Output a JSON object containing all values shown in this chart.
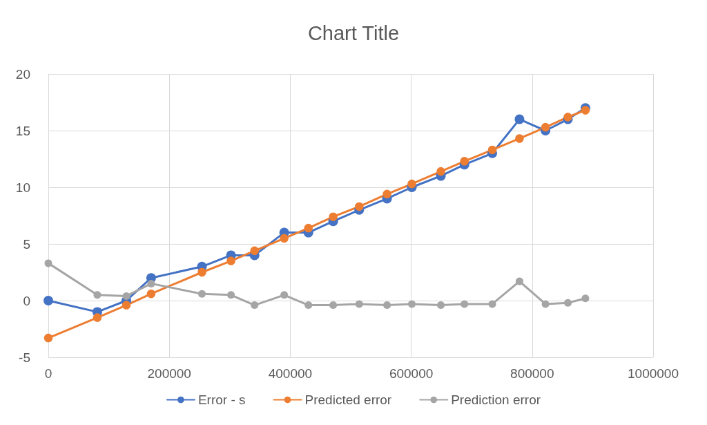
{
  "chart_data": {
    "type": "line",
    "title": "Chart Title",
    "x": [
      0,
      81000,
      129000,
      170000,
      254000,
      302000,
      341000,
      390000,
      430000,
      471000,
      514000,
      560000,
      601000,
      649000,
      688000,
      734000,
      779000,
      822000,
      859000,
      888000
    ],
    "series": [
      {
        "name": "Error - s",
        "color": "#4472c4",
        "values": [
          0,
          -1,
          0,
          2,
          3,
          4,
          4,
          6,
          6,
          7,
          8,
          9,
          10,
          11,
          12,
          13,
          16,
          15,
          16,
          17
        ]
      },
      {
        "name": "Predicted error",
        "color": "#ed7d31",
        "values": [
          -3.3,
          -1.5,
          -0.4,
          0.6,
          2.5,
          3.5,
          4.4,
          5.5,
          6.4,
          7.4,
          8.3,
          9.4,
          10.3,
          11.4,
          12.3,
          13.3,
          14.3,
          15.3,
          16.2,
          16.8
        ]
      },
      {
        "name": "Prediction error",
        "color": "#a5a5a5",
        "values": [
          3.3,
          0.5,
          0.4,
          1.5,
          0.6,
          0.5,
          -0.4,
          0.5,
          -0.4,
          -0.4,
          -0.3,
          -0.4,
          -0.3,
          -0.4,
          -0.3,
          -0.3,
          1.7,
          -0.3,
          -0.2,
          0.2
        ]
      }
    ],
    "xlim": [
      0,
      1000000
    ],
    "xticks": [
      0,
      200000,
      400000,
      600000,
      800000,
      1000000
    ],
    "ylim": [
      -5,
      20
    ],
    "yticks": [
      -5,
      0,
      5,
      10,
      15,
      20
    ],
    "grid": true,
    "legend": "bottom",
    "marker": "circle",
    "line_style": "solid"
  }
}
